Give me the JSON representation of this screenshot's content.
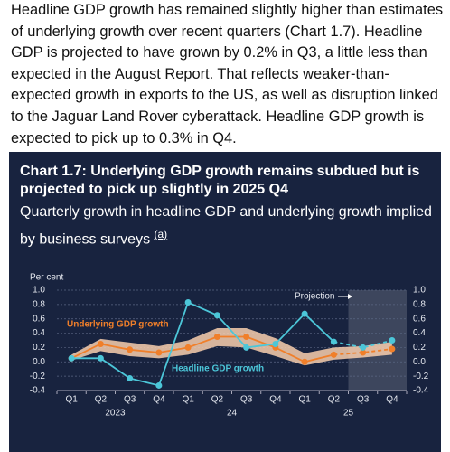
{
  "paragraph": "Headline GDP growth has remained slightly higher than estimates of underlying growth over recent quarters (Chart 1.7). Headline GDP is projected to have grown by 0.2% in Q3, a little less than expected in the August Report. That reflects weaker-than-expected growth in exports to the US, as well as disruption linked to the Jaguar Land Rover cyberattack. Headline GDP growth is expected to pick up to 0.3% in Q4.",
  "chart_data": {
    "type": "line",
    "title": "Chart 1.7: Underlying GDP growth remains subdued but is projected to pick up slightly in 2025 Q4",
    "subtitle": "Quarterly growth in headline GDP and underlying growth implied by business surveys",
    "footnote_ref": "(a)",
    "y_label": "Per cent",
    "categories": [
      "Q1",
      "Q2",
      "Q3",
      "Q4",
      "Q1",
      "Q2",
      "Q3",
      "Q4",
      "Q1",
      "Q2",
      "Q3",
      "Q4"
    ],
    "groups": [
      {
        "label": "2023",
        "count": 4
      },
      {
        "label": "24",
        "count": 4
      },
      {
        "label": "25",
        "count": 4
      }
    ],
    "projection": {
      "label": "Projection",
      "start_index": 10
    },
    "series": [
      {
        "name": "Underlying GDP growth",
        "color": "#f07f2a",
        "values": [
          0.05,
          0.25,
          0.17,
          0.13,
          0.2,
          0.35,
          0.35,
          0.2,
          0.0,
          0.1,
          0.13,
          0.18
        ]
      },
      {
        "name": "Headline GDP growth",
        "color": "#4cc6d8",
        "values": [
          0.05,
          0.05,
          -0.23,
          -0.33,
          0.83,
          0.65,
          0.2,
          0.25,
          0.67,
          0.28,
          0.2,
          0.3
        ]
      }
    ],
    "range": {
      "color": "#f9cfae",
      "low": [
        0.02,
        0.15,
        0.08,
        0.05,
        0.1,
        0.22,
        0.2,
        0.08,
        -0.05,
        0.03,
        0.06,
        0.1
      ],
      "high": [
        0.1,
        0.32,
        0.27,
        0.22,
        0.3,
        0.47,
        0.47,
        0.33,
        0.12,
        0.2,
        0.22,
        0.28
      ]
    },
    "ylim": [
      -0.4,
      1.0
    ],
    "yticks": [
      {
        "value": -0.4,
        "label": "-0.4"
      },
      {
        "value": -0.2,
        "label": "-0.2"
      },
      {
        "value": 0,
        "label": "0.0"
      },
      0.2,
      0.4,
      0.6,
      0.8,
      {
        "value": 1,
        "label": "1.0"
      }
    ],
    "grid": true
  }
}
